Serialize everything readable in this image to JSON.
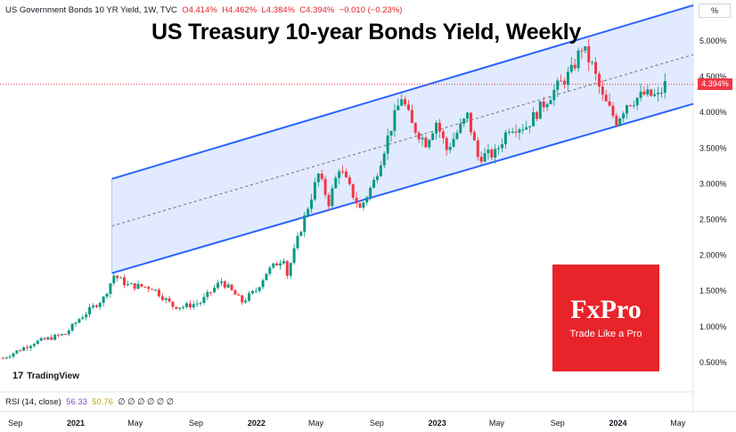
{
  "header": {
    "symbol": "US Government Bonds 10 YR Yield, 1W, TVC",
    "open": "O4.414%",
    "high": "H4.462%",
    "low": "L4.384%",
    "close": "C4.394%",
    "change": "−0.010 (−0.23%)"
  },
  "currency_button": "%",
  "tradingview_label": "TradingView",
  "rsi": {
    "label": "RSI (14, close)",
    "value1": "56.33",
    "value2": "50.76",
    "rest": "∅ ∅ ∅ ∅ ∅ ∅"
  },
  "fxpro": {
    "brand": "FxPro",
    "tagline": "Trade Like a Pro"
  },
  "colors": {
    "up": "#089981",
    "down": "#f23645",
    "channel_line": "#2962ff",
    "channel_fill": "#dce6fe",
    "fxpro": "#e8232a"
  },
  "chart_data": {
    "type": "candlestick",
    "title": "US Treasury 10-year Bonds Yield, Weekly",
    "y_tick_labels": [
      "5.000%",
      "4.500%",
      "4.000%",
      "3.500%",
      "3.000%",
      "2.500%",
      "2.000%",
      "1.500%",
      "1.000%",
      "0.500%"
    ],
    "y_ticks": [
      5.0,
      4.5,
      4.0,
      3.5,
      3.0,
      2.5,
      2.0,
      1.5,
      1.0,
      0.5
    ],
    "ylim": [
      0.18,
      5.55
    ],
    "x_tick_labels": [
      "Sep",
      "2021",
      "May",
      "Sep",
      "2022",
      "May",
      "Sep",
      "2023",
      "May",
      "Sep",
      "2024",
      "May"
    ],
    "x_tick_dates": [
      "2020-09-01",
      "2021-01-01",
      "2021-05-01",
      "2021-09-01",
      "2022-01-01",
      "2022-05-01",
      "2022-09-01",
      "2023-01-01",
      "2023-05-01",
      "2023-09-01",
      "2024-01-01",
      "2024-05-01"
    ],
    "xlim": [
      "2020-08-01",
      "2024-06-01"
    ],
    "last_price_label": "4.394%",
    "last_price": 4.394,
    "channel": {
      "start_date": "2021-03-15",
      "end_date": "2024-06-01",
      "upper": [
        3.07,
        5.5
      ],
      "middle": [
        2.41,
        4.81
      ],
      "lower": [
        1.75,
        4.12
      ]
    },
    "anchors": [
      [
        "2020-08-07",
        0.56
      ],
      [
        "2020-10-09",
        0.78
      ],
      [
        "2020-12-11",
        0.9
      ],
      [
        "2021-01-08",
        1.11
      ],
      [
        "2021-02-26",
        1.4
      ],
      [
        "2021-03-19",
        1.72
      ],
      [
        "2021-04-16",
        1.58
      ],
      [
        "2021-06-04",
        1.55
      ],
      [
        "2021-07-16",
        1.29
      ],
      [
        "2021-08-06",
        1.28
      ],
      [
        "2021-09-10",
        1.34
      ],
      [
        "2021-10-22",
        1.64
      ],
      [
        "2021-12-03",
        1.35
      ],
      [
        "2021-12-31",
        1.51
      ],
      [
        "2022-01-21",
        1.76
      ],
      [
        "2022-02-25",
        1.97
      ],
      [
        "2022-03-04",
        1.73
      ],
      [
        "2022-04-01",
        2.38
      ],
      [
        "2022-05-06",
        3.13
      ],
      [
        "2022-05-27",
        2.74
      ],
      [
        "2022-06-17",
        3.23
      ],
      [
        "2022-07-29",
        2.65
      ],
      [
        "2022-08-26",
        3.03
      ],
      [
        "2022-09-30",
        3.8
      ],
      [
        "2022-10-21",
        4.22
      ],
      [
        "2022-11-11",
        3.82
      ],
      [
        "2022-12-09",
        3.58
      ],
      [
        "2022-12-30",
        3.87
      ],
      [
        "2023-01-20",
        3.48
      ],
      [
        "2023-03-03",
        3.95
      ],
      [
        "2023-03-24",
        3.38
      ],
      [
        "2023-04-28",
        3.42
      ],
      [
        "2023-05-26",
        3.8
      ],
      [
        "2023-06-30",
        3.81
      ],
      [
        "2023-08-18",
        4.25
      ],
      [
        "2023-09-29",
        4.57
      ],
      [
        "2023-10-20",
        4.92
      ],
      [
        "2023-11-10",
        4.65
      ],
      [
        "2023-12-01",
        4.2
      ],
      [
        "2023-12-29",
        3.88
      ],
      [
        "2024-01-19",
        4.13
      ],
      [
        "2024-02-23",
        4.25
      ],
      [
        "2024-03-22",
        4.22
      ],
      [
        "2024-04-05",
        4.39
      ]
    ]
  }
}
